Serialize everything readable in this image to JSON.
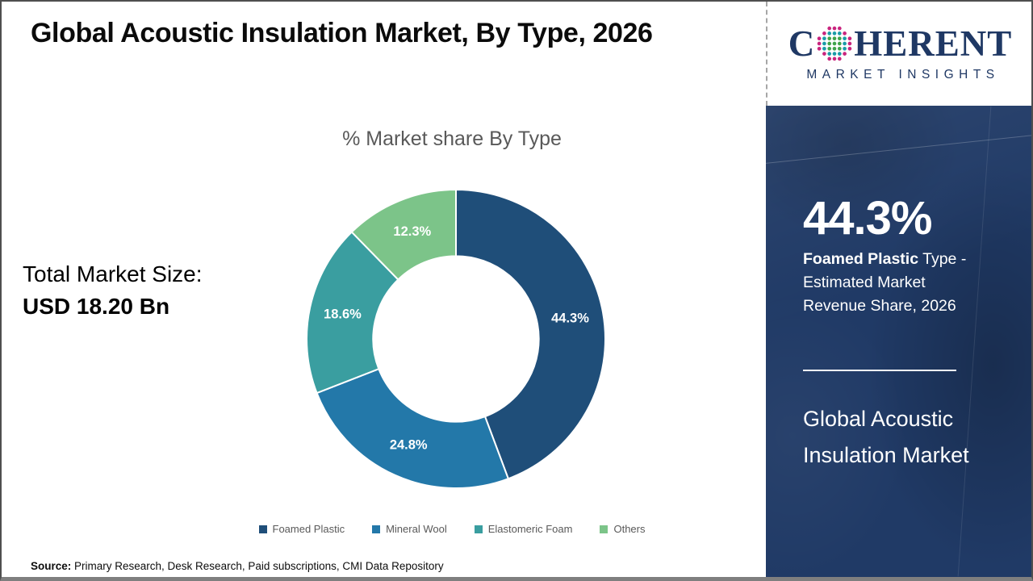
{
  "title": "Global Acoustic Insulation Market, By Type, 2026",
  "logo": {
    "brand_c": "C",
    "brand_rest": "HERENT",
    "tagline": "MARKET INSIGHTS",
    "navy": "#1F3864",
    "globe_colors": {
      "outer": "#C9257E",
      "mid": "#1A9CA8",
      "center": "#3FA44A"
    }
  },
  "left_panel": {
    "total_market_label": "Total Market Size:",
    "total_market_value": "USD 18.20 Bn"
  },
  "chart_data": {
    "type": "pie",
    "subtype": "donut",
    "title": "% Market share By Type",
    "categories": [
      "Foamed Plastic",
      "Mineral Wool",
      "Elastomeric Foam",
      "Others"
    ],
    "values": [
      44.3,
      24.8,
      18.6,
      12.3
    ],
    "data_labels": [
      "44.3%",
      "24.8%",
      "18.6%",
      "12.3%"
    ],
    "colors": [
      "#1F4E79",
      "#2378A9",
      "#3A9EA0",
      "#7CC489"
    ],
    "start_angle_deg": 0,
    "direction": "clockwise",
    "inner_radius_ratio": 0.555,
    "legend_position": "bottom",
    "label_color": "#FFFFFF"
  },
  "sidebar": {
    "bg_color": "#203A66",
    "stat_value": "44.3%",
    "stat_desc_bold": "Foamed Plastic",
    "stat_desc_rest": " Type - Estimated Market Revenue Share, 2026",
    "panel_title": "Global Acoustic Insulation Market"
  },
  "footer": {
    "source_label": "Source:",
    "source_text": " Primary Research, Desk Research, Paid subscriptions, CMI Data Repository"
  }
}
